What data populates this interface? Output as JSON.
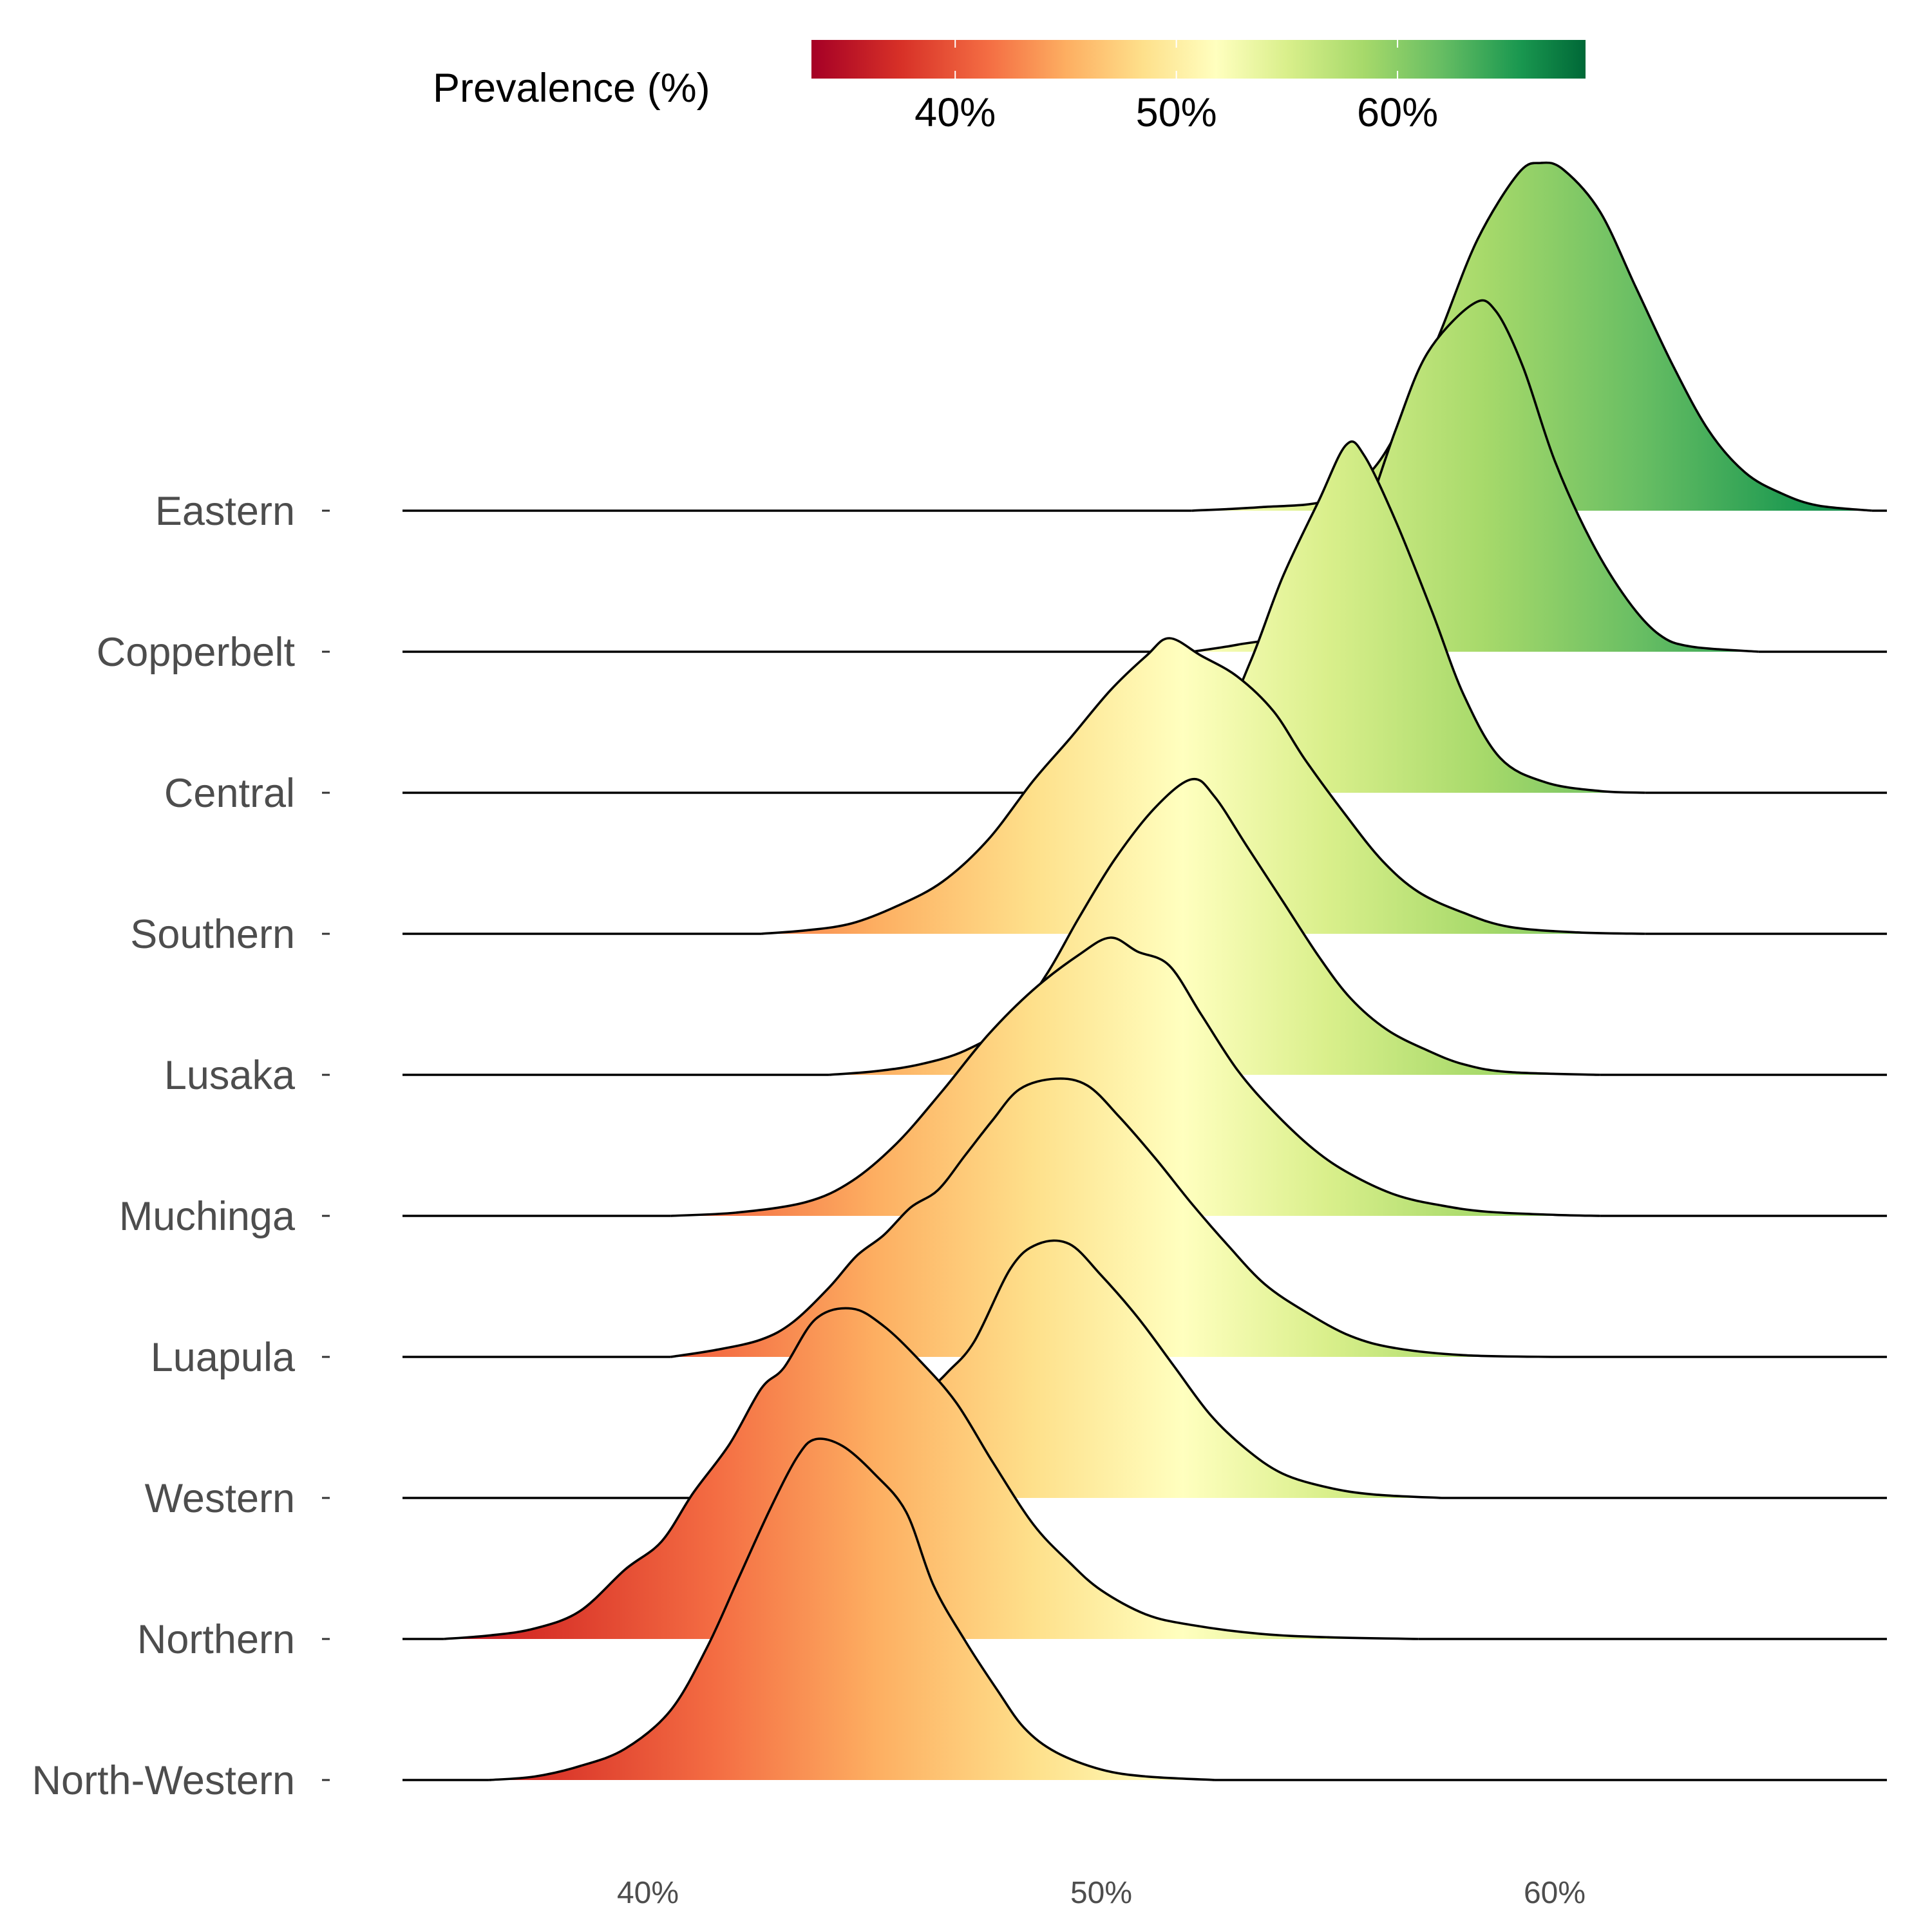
{
  "chart_data": {
    "type": "ridgeline",
    "x_unit": "%",
    "xlim": [
      34,
      67
    ],
    "x_ticks": [
      {
        "value": 40,
        "label": "40%"
      },
      {
        "value": 50,
        "label": "50%"
      },
      {
        "value": 60,
        "label": "60%"
      }
    ],
    "legend": {
      "title": "Prevalence (%)",
      "placement": "top",
      "range": [
        33.5,
        68.5
      ],
      "ticks": [
        {
          "value": 40,
          "label": "40%"
        },
        {
          "value": 50,
          "label": "50%"
        },
        {
          "value": 60,
          "label": "60%"
        }
      ]
    },
    "colorscale": {
      "name": "RdYlGn",
      "stops": [
        {
          "value": 33.5,
          "color": "#a50026"
        },
        {
          "value": 37.5,
          "color": "#d73027"
        },
        {
          "value": 41.5,
          "color": "#f46d43"
        },
        {
          "value": 45.0,
          "color": "#fdae61"
        },
        {
          "value": 48.5,
          "color": "#fee08b"
        },
        {
          "value": 51.8,
          "color": "#ffffbf"
        },
        {
          "value": 55.0,
          "color": "#d9ef8b"
        },
        {
          "value": 58.5,
          "color": "#a6d96a"
        },
        {
          "value": 62.0,
          "color": "#66bd63"
        },
        {
          "value": 65.5,
          "color": "#1a9850"
        },
        {
          "value": 68.5,
          "color": "#006837"
        }
      ]
    },
    "series": [
      {
        "name": "Eastern",
        "peak": 59.7,
        "density": [
          [
            52.0,
            0
          ],
          [
            53.5,
            0.01
          ],
          [
            55.0,
            0.03
          ],
          [
            56.0,
            0.12
          ],
          [
            56.8,
            0.3
          ],
          [
            57.5,
            0.52
          ],
          [
            58.3,
            0.78
          ],
          [
            59.2,
            0.97
          ],
          [
            59.7,
            1.0
          ],
          [
            60.2,
            0.98
          ],
          [
            61.0,
            0.86
          ],
          [
            61.8,
            0.64
          ],
          [
            62.6,
            0.42
          ],
          [
            63.4,
            0.23
          ],
          [
            64.2,
            0.11
          ],
          [
            65.0,
            0.05
          ],
          [
            65.8,
            0.015
          ],
          [
            67.0,
            0
          ]
        ]
      },
      {
        "name": "Copperbelt",
        "peak": 58.2,
        "density": [
          [
            52.0,
            0
          ],
          [
            53.0,
            0.02
          ],
          [
            54.0,
            0.05
          ],
          [
            55.0,
            0.15
          ],
          [
            55.8,
            0.38
          ],
          [
            56.5,
            0.64
          ],
          [
            57.2,
            0.86
          ],
          [
            58.2,
            1.0
          ],
          [
            58.7,
            0.98
          ],
          [
            59.3,
            0.82
          ],
          [
            60.0,
            0.55
          ],
          [
            60.8,
            0.32
          ],
          [
            61.6,
            0.15
          ],
          [
            62.3,
            0.05
          ],
          [
            63.0,
            0.015
          ],
          [
            64.5,
            0
          ]
        ]
      },
      {
        "name": "Central",
        "peak": 55.4,
        "density": [
          [
            48.5,
            0
          ],
          [
            50.0,
            0.02
          ],
          [
            51.5,
            0.06
          ],
          [
            52.5,
            0.16
          ],
          [
            53.3,
            0.38
          ],
          [
            54.0,
            0.62
          ],
          [
            54.8,
            0.84
          ],
          [
            55.4,
            1.0
          ],
          [
            55.8,
            0.97
          ],
          [
            56.5,
            0.78
          ],
          [
            57.3,
            0.52
          ],
          [
            58.0,
            0.28
          ],
          [
            58.8,
            0.1
          ],
          [
            59.8,
            0.03
          ],
          [
            61.0,
            0.005
          ],
          [
            62.0,
            0
          ]
        ]
      },
      {
        "name": "Southern",
        "peak": 51.5,
        "density": [
          [
            42.5,
            0
          ],
          [
            43.5,
            0.01
          ],
          [
            44.5,
            0.03
          ],
          [
            45.5,
            0.08
          ],
          [
            46.5,
            0.15
          ],
          [
            47.5,
            0.27
          ],
          [
            48.5,
            0.44
          ],
          [
            49.3,
            0.56
          ],
          [
            50.2,
            0.7
          ],
          [
            51.0,
            0.8
          ],
          [
            51.5,
            0.85
          ],
          [
            52.2,
            0.8
          ],
          [
            53.0,
            0.74
          ],
          [
            53.8,
            0.64
          ],
          [
            54.5,
            0.5
          ],
          [
            55.4,
            0.34
          ],
          [
            56.2,
            0.21
          ],
          [
            57.0,
            0.12
          ],
          [
            58.0,
            0.06
          ],
          [
            59.0,
            0.02
          ],
          [
            60.5,
            0.004
          ],
          [
            62.0,
            0
          ]
        ]
      },
      {
        "name": "Lusaka",
        "peak": 52.0,
        "density": [
          [
            44.0,
            0
          ],
          [
            45.0,
            0.01
          ],
          [
            46.0,
            0.03
          ],
          [
            47.0,
            0.07
          ],
          [
            48.0,
            0.15
          ],
          [
            48.8,
            0.29
          ],
          [
            49.5,
            0.45
          ],
          [
            50.3,
            0.62
          ],
          [
            51.2,
            0.77
          ],
          [
            52.0,
            0.85
          ],
          [
            52.5,
            0.8
          ],
          [
            53.2,
            0.66
          ],
          [
            54.0,
            0.5
          ],
          [
            54.8,
            0.34
          ],
          [
            55.5,
            0.22
          ],
          [
            56.3,
            0.13
          ],
          [
            57.2,
            0.07
          ],
          [
            58.0,
            0.03
          ],
          [
            59.0,
            0.008
          ],
          [
            61.0,
            0
          ]
        ]
      },
      {
        "name": "Muchinga",
        "peak": 50.2,
        "density": [
          [
            40.5,
            0
          ],
          [
            42.0,
            0.01
          ],
          [
            43.5,
            0.04
          ],
          [
            44.5,
            0.1
          ],
          [
            45.5,
            0.21
          ],
          [
            46.5,
            0.36
          ],
          [
            47.5,
            0.52
          ],
          [
            48.5,
            0.65
          ],
          [
            49.5,
            0.75
          ],
          [
            50.2,
            0.8
          ],
          [
            50.8,
            0.76
          ],
          [
            51.5,
            0.72
          ],
          [
            52.2,
            0.58
          ],
          [
            53.0,
            0.42
          ],
          [
            53.8,
            0.3
          ],
          [
            54.7,
            0.19
          ],
          [
            55.5,
            0.12
          ],
          [
            56.5,
            0.06
          ],
          [
            57.5,
            0.03
          ],
          [
            58.5,
            0.012
          ],
          [
            60.0,
            0.003
          ],
          [
            61.0,
            0
          ]
        ]
      },
      {
        "name": "Luapula",
        "peak": 49.0,
        "density": [
          [
            40.5,
            0
          ],
          [
            41.5,
            0.02
          ],
          [
            42.5,
            0.05
          ],
          [
            43.2,
            0.1
          ],
          [
            44.0,
            0.2
          ],
          [
            44.6,
            0.29
          ],
          [
            45.2,
            0.35
          ],
          [
            45.8,
            0.43
          ],
          [
            46.4,
            0.48
          ],
          [
            47.0,
            0.58
          ],
          [
            47.6,
            0.68
          ],
          [
            48.2,
            0.77
          ],
          [
            49.0,
            0.8
          ],
          [
            49.7,
            0.78
          ],
          [
            50.4,
            0.69
          ],
          [
            51.2,
            0.57
          ],
          [
            52.0,
            0.44
          ],
          [
            52.8,
            0.32
          ],
          [
            53.6,
            0.21
          ],
          [
            54.5,
            0.13
          ],
          [
            55.5,
            0.06
          ],
          [
            56.5,
            0.025
          ],
          [
            58.0,
            0.005
          ],
          [
            60.0,
            0
          ]
        ]
      },
      {
        "name": "Western",
        "peak": 48.6,
        "density": [
          [
            42.0,
            0
          ],
          [
            43.5,
            0.02
          ],
          [
            44.5,
            0.07
          ],
          [
            45.2,
            0.14
          ],
          [
            46.0,
            0.28
          ],
          [
            46.6,
            0.36
          ],
          [
            47.2,
            0.45
          ],
          [
            48.0,
            0.66
          ],
          [
            48.6,
            0.73
          ],
          [
            49.3,
            0.73
          ],
          [
            50.0,
            0.64
          ],
          [
            50.8,
            0.52
          ],
          [
            51.6,
            0.38
          ],
          [
            52.4,
            0.24
          ],
          [
            53.2,
            0.14
          ],
          [
            54.0,
            0.07
          ],
          [
            55.0,
            0.03
          ],
          [
            56.0,
            0.01
          ],
          [
            57.5,
            0
          ]
        ]
      },
      {
        "name": "Northern",
        "peak": 44.5,
        "density": [
          [
            35.5,
            0
          ],
          [
            36.5,
            0.01
          ],
          [
            37.5,
            0.03
          ],
          [
            38.5,
            0.08
          ],
          [
            39.5,
            0.2
          ],
          [
            40.3,
            0.28
          ],
          [
            41.0,
            0.42
          ],
          [
            41.8,
            0.56
          ],
          [
            42.5,
            0.72
          ],
          [
            43.0,
            0.78
          ],
          [
            43.7,
            0.92
          ],
          [
            44.5,
            0.95
          ],
          [
            45.2,
            0.9
          ],
          [
            46.0,
            0.8
          ],
          [
            46.8,
            0.68
          ],
          [
            47.6,
            0.51
          ],
          [
            48.5,
            0.33
          ],
          [
            49.3,
            0.22
          ],
          [
            50.0,
            0.14
          ],
          [
            51.0,
            0.07
          ],
          [
            52.0,
            0.04
          ],
          [
            53.5,
            0.015
          ],
          [
            55.0,
            0.005
          ],
          [
            57.0,
            0
          ]
        ]
      },
      {
        "name": "North-Western",
        "peak": 43.7,
        "density": [
          [
            36.5,
            0
          ],
          [
            37.5,
            0.01
          ],
          [
            38.5,
            0.04
          ],
          [
            39.5,
            0.09
          ],
          [
            40.5,
            0.2
          ],
          [
            41.3,
            0.38
          ],
          [
            42.0,
            0.58
          ],
          [
            42.7,
            0.78
          ],
          [
            43.3,
            0.93
          ],
          [
            43.7,
            0.98
          ],
          [
            44.3,
            0.96
          ],
          [
            45.0,
            0.88
          ],
          [
            45.7,
            0.77
          ],
          [
            46.3,
            0.56
          ],
          [
            47.0,
            0.4
          ],
          [
            47.7,
            0.26
          ],
          [
            48.3,
            0.15
          ],
          [
            49.0,
            0.08
          ],
          [
            50.0,
            0.03
          ],
          [
            51.0,
            0.01
          ],
          [
            52.5,
            0
          ]
        ]
      }
    ]
  }
}
